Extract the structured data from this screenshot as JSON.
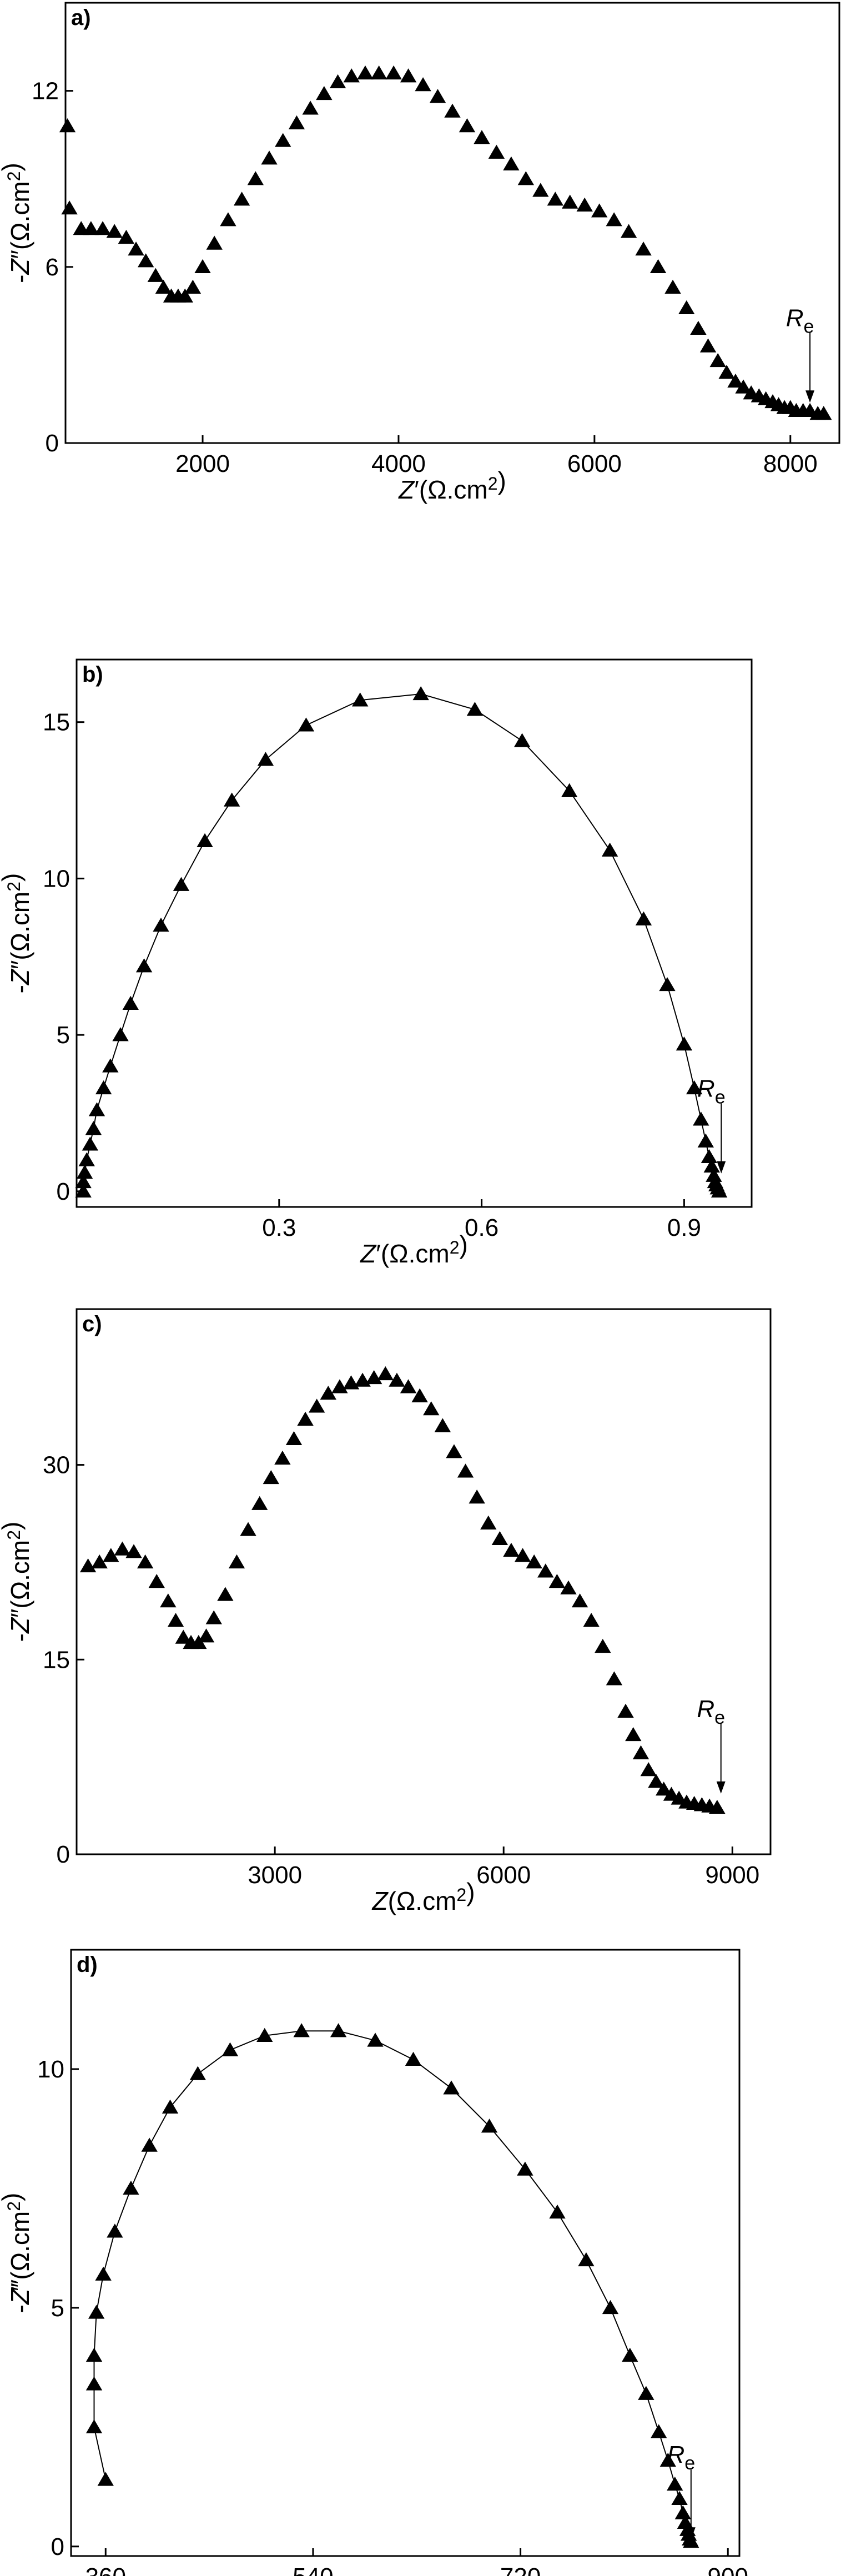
{
  "chart_data": [
    {
      "type": "scatter",
      "panel_label": "a)",
      "xlabel": "Z′(Ω.cm²)",
      "ylabel": "-Z″(Ω.cm²)",
      "xlim": [
        600,
        8500
      ],
      "ylim": [
        0,
        15
      ],
      "xticks": [
        2000,
        4000,
        6000,
        8000
      ],
      "yticks": [
        0,
        6,
        12
      ],
      "connected": false,
      "annotation": "Re",
      "annotation_x": 8200,
      "annotation_y": 1.3,
      "x": [
        620,
        640,
        760,
        860,
        980,
        1100,
        1220,
        1320,
        1420,
        1520,
        1600,
        1680,
        1750,
        1820,
        1900,
        2000,
        2120,
        2260,
        2400,
        2540,
        2680,
        2820,
        2960,
        3100,
        3240,
        3380,
        3520,
        3660,
        3800,
        3950,
        4100,
        4250,
        4400,
        4550,
        4700,
        4850,
        5000,
        5150,
        5300,
        5450,
        5600,
        5750,
        5900,
        6050,
        6200,
        6350,
        6500,
        6650,
        6800,
        6940,
        7060,
        7160,
        7260,
        7350,
        7440,
        7520,
        7600,
        7680,
        7750,
        7820,
        7880,
        7940,
        8000,
        8060,
        8130,
        8200,
        8280,
        8340
      ],
      "y": [
        10.8,
        8.0,
        7.3,
        7.3,
        7.3,
        7.2,
        7.0,
        6.6,
        6.2,
        5.7,
        5.3,
        5.0,
        5.0,
        5.0,
        5.3,
        6.0,
        6.8,
        7.6,
        8.3,
        9.0,
        9.7,
        10.3,
        10.9,
        11.4,
        11.9,
        12.3,
        12.5,
        12.6,
        12.6,
        12.6,
        12.5,
        12.2,
        11.8,
        11.3,
        10.8,
        10.4,
        9.9,
        9.5,
        9.0,
        8.6,
        8.3,
        8.2,
        8.1,
        7.9,
        7.6,
        7.2,
        6.6,
        6.0,
        5.3,
        4.6,
        3.9,
        3.3,
        2.8,
        2.4,
        2.1,
        1.9,
        1.7,
        1.6,
        1.5,
        1.4,
        1.3,
        1.2,
        1.2,
        1.1,
        1.1,
        1.1,
        1.0,
        1.0
      ]
    },
    {
      "type": "line",
      "panel_label": "b)",
      "xlabel": "Z′(Ω.cm²)",
      "ylabel": "-Z″(Ω.cm²)",
      "xlim": [
        0,
        1.0
      ],
      "ylim": [
        -0.5,
        17.0
      ],
      "xticks": [
        0.3,
        0.6,
        0.9
      ],
      "xtick_labels": [
        "0.3",
        "0.6",
        "0.9"
      ],
      "yticks": [
        0,
        5,
        10,
        15
      ],
      "connected": true,
      "annotation": "Re",
      "annotation_x": 0.955,
      "annotation_y": 0.5,
      "x": [
        0.01,
        0.01,
        0.012,
        0.015,
        0.02,
        0.025,
        0.03,
        0.04,
        0.05,
        0.065,
        0.08,
        0.1,
        0.125,
        0.155,
        0.19,
        0.23,
        0.28,
        0.34,
        0.42,
        0.51,
        0.59,
        0.66,
        0.73,
        0.79,
        0.84,
        0.875,
        0.9,
        0.915,
        0.925,
        0.932,
        0.937,
        0.941,
        0.944,
        0.946,
        0.948,
        0.95,
        0.952
      ],
      "y": [
        0.0,
        0.3,
        0.6,
        1.0,
        1.5,
        2.0,
        2.6,
        3.3,
        4.0,
        5.0,
        6.0,
        7.2,
        8.5,
        9.8,
        11.2,
        12.5,
        13.8,
        14.9,
        15.7,
        15.9,
        15.4,
        14.4,
        12.8,
        10.9,
        8.7,
        6.6,
        4.7,
        3.3,
        2.3,
        1.6,
        1.1,
        0.8,
        0.5,
        0.3,
        0.2,
        0.1,
        0.0
      ]
    },
    {
      "type": "scatter",
      "panel_label": "c)",
      "xlabel": "Z(Ω.cm²)",
      "ylabel": "-Z″(Ω.cm²)",
      "xlim": [
        400,
        9500
      ],
      "ylim": [
        0,
        42
      ],
      "xticks": [
        3000,
        6000,
        9000
      ],
      "yticks": [
        0,
        15,
        30
      ],
      "connected": false,
      "annotation": "Re",
      "annotation_x": 8850,
      "annotation_y": 4.5,
      "x": [
        550,
        700,
        850,
        1000,
        1150,
        1300,
        1450,
        1600,
        1700,
        1800,
        1900,
        2000,
        2100,
        2200,
        2350,
        2500,
        2650,
        2800,
        2950,
        3100,
        3250,
        3400,
        3550,
        3700,
        3850,
        4000,
        4150,
        4300,
        4450,
        4600,
        4750,
        4900,
        5050,
        5200,
        5350,
        5500,
        5650,
        5800,
        5950,
        6100,
        6250,
        6400,
        6550,
        6700,
        6850,
        7000,
        7150,
        7300,
        7450,
        7600,
        7700,
        7800,
        7900,
        8000,
        8100,
        8200,
        8300,
        8400,
        8500,
        8600,
        8700,
        8800
      ],
      "y": [
        22.2,
        22.5,
        23.0,
        23.5,
        23.3,
        22.5,
        21.0,
        19.5,
        18.0,
        16.7,
        16.3,
        16.3,
        16.8,
        18.2,
        20.0,
        22.5,
        25.0,
        27.0,
        29.0,
        30.5,
        32.0,
        33.5,
        34.5,
        35.5,
        36.0,
        36.3,
        36.5,
        36.7,
        37.0,
        36.5,
        36.0,
        35.3,
        34.3,
        33.0,
        31.0,
        29.5,
        27.5,
        25.5,
        24.3,
        23.4,
        23.0,
        22.5,
        21.8,
        21.0,
        20.5,
        19.5,
        18.0,
        16.0,
        13.5,
        11.0,
        9.2,
        7.8,
        6.5,
        5.6,
        5.0,
        4.6,
        4.3,
        4.0,
        3.9,
        3.8,
        3.7,
        3.6
      ]
    },
    {
      "type": "line",
      "panel_label": "d)",
      "xlabel": "Z(Ω.cm²)",
      "ylabel": "-Z‴(Ω.cm²)",
      "xlim": [
        330,
        910
      ],
      "ylim": [
        -0.2,
        12.5
      ],
      "xticks": [
        360,
        540,
        720,
        900
      ],
      "yticks": [
        0,
        5,
        10
      ],
      "connected": true,
      "annotation": "Re",
      "annotation_x": 868,
      "annotation_y": 0.1,
      "x": [
        360,
        350,
        350,
        350,
        352,
        358,
        368,
        382,
        398,
        416,
        440,
        468,
        498,
        530,
        562,
        594,
        627,
        660,
        693,
        724,
        752,
        777,
        798,
        815,
        829,
        840,
        848,
        854,
        858,
        861,
        863,
        865,
        866,
        867,
        868
      ],
      "y": [
        1.4,
        2.5,
        3.4,
        4.0,
        4.9,
        5.7,
        6.6,
        7.5,
        8.4,
        9.2,
        9.9,
        10.4,
        10.7,
        10.8,
        10.8,
        10.6,
        10.2,
        9.6,
        8.8,
        7.9,
        7.0,
        6.0,
        5.0,
        4.0,
        3.2,
        2.4,
        1.8,
        1.3,
        1.0,
        0.7,
        0.5,
        0.35,
        0.25,
        0.15,
        0.1
      ]
    }
  ]
}
